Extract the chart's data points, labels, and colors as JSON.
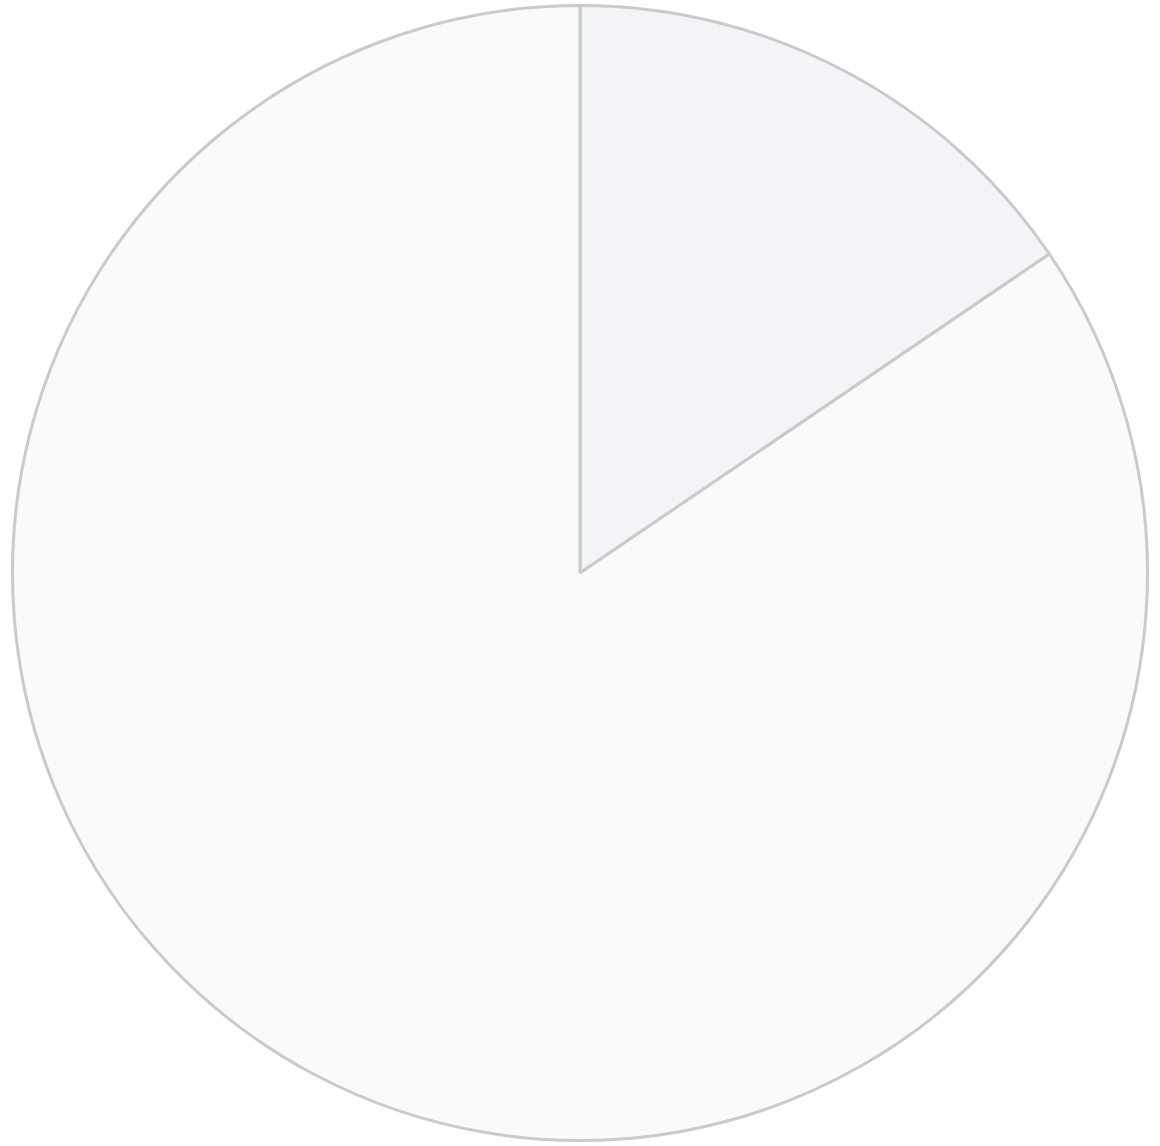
{
  "chart_data": {
    "type": "pie",
    "categories": [
      null,
      null
    ],
    "values": [
      15.5,
      84.5
    ],
    "colors": [
      "#f3f4f8",
      "#fafafa"
    ],
    "legend": false
  }
}
